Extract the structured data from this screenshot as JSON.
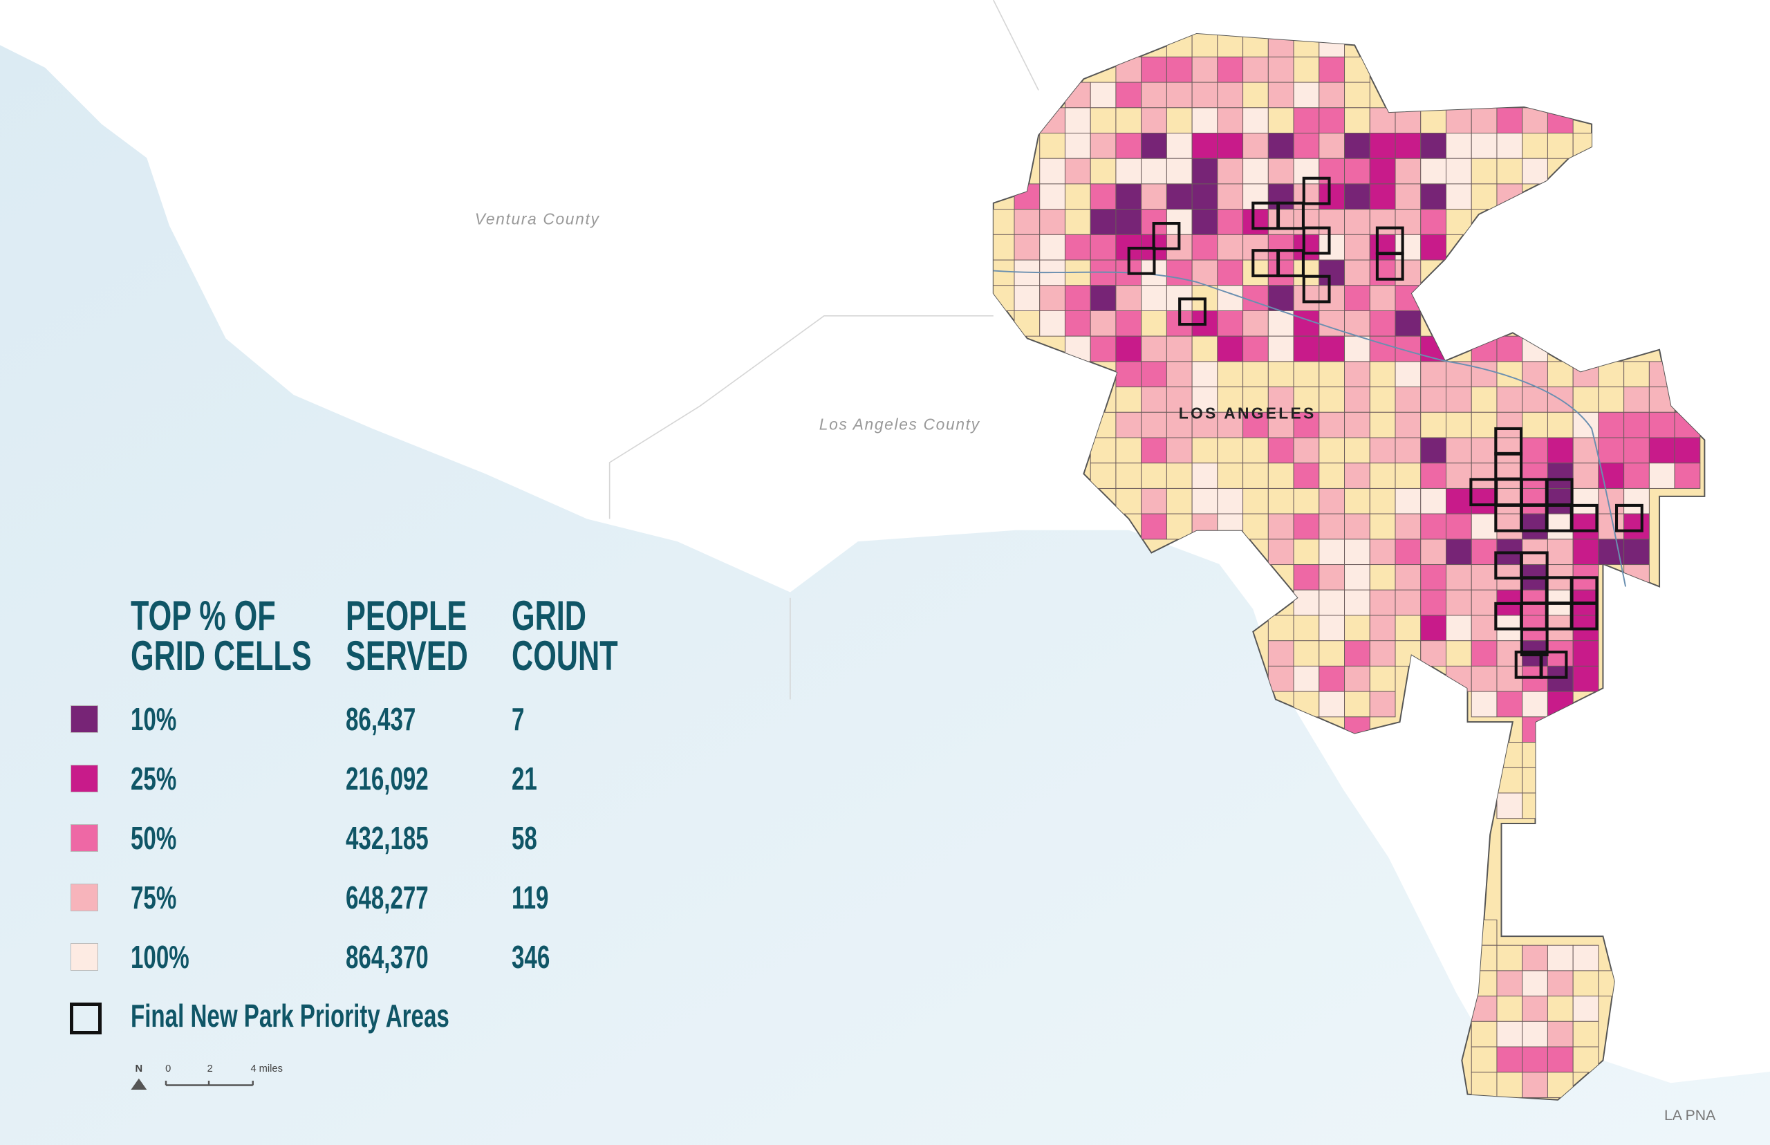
{
  "map_labels": {
    "ventura": "Ventura County",
    "la_county": "Los Angeles County",
    "city": "LOS ANGELES",
    "credit": "LA PNA"
  },
  "legend": {
    "headers": [
      [
        "TOP % OF",
        "GRID CELLS"
      ],
      [
        "PEOPLE",
        "SERVED"
      ],
      [
        "GRID",
        "COUNT"
      ]
    ],
    "rows": [
      {
        "color": "#772476",
        "top": "10%",
        "people": "86,437",
        "count": "7"
      },
      {
        "color": "#c81b8a",
        "top": "25%",
        "people": "216,092",
        "count": "21"
      },
      {
        "color": "#ee68a5",
        "top": "50%",
        "people": "432,185",
        "count": "58"
      },
      {
        "color": "#f7b4bb",
        "top": "75%",
        "people": "648,277",
        "count": "119"
      },
      {
        "color": "#fdebe3",
        "top": "100%",
        "people": "864,370",
        "count": "346"
      }
    ],
    "priority": "Final New Park Priority Areas"
  },
  "scale_bar": {
    "north": "N",
    "ticks": [
      "0",
      "2",
      "4 miles"
    ]
  }
}
